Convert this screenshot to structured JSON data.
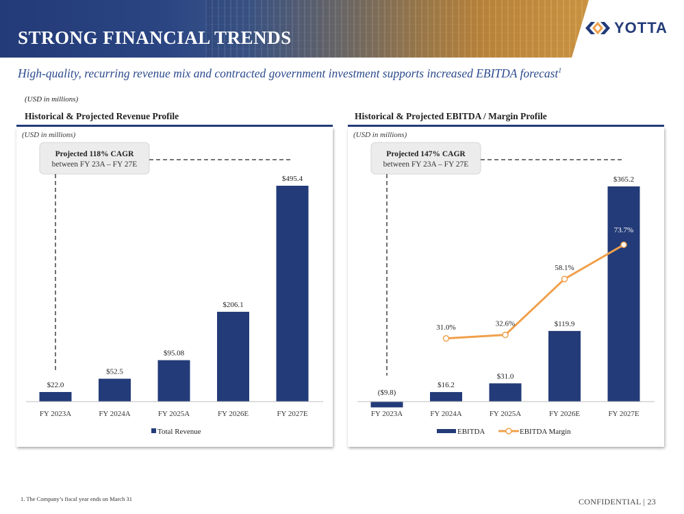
{
  "header": {
    "title": "STRONG FINANCIAL TRENDS",
    "logo_text": "YOTTA",
    "subtitle": "High-quality, recurring revenue mix and contracted government investment supports increased EBITDA forecast",
    "subtitle_sup": "1",
    "units_note": "(USD in millions)"
  },
  "colors": {
    "navy": "#233b78",
    "orange": "#f0a04b",
    "cagr_box": "#ececec"
  },
  "revenue_panel": {
    "title": "Historical & Projected Revenue Profile"
  },
  "ebitda_panel": {
    "title": "Historical & Projected EBITDA / Margin Profile"
  },
  "chart_data": [
    {
      "type": "bar",
      "title": "Historical & Projected Revenue Profile",
      "units_note": "(USD in millions)",
      "categories": [
        "FY 2023A",
        "FY 2024A",
        "FY 2025A",
        "FY 2026E",
        "FY 2027E"
      ],
      "series": [
        {
          "name": "Total Revenue",
          "values": [
            22.0,
            52.5,
            95.08,
            206.1,
            495.4
          ],
          "labels": [
            "$22.0",
            "$52.5",
            "$95.08",
            "$206.1",
            "$495.4"
          ]
        }
      ],
      "ylim": [
        0,
        520
      ],
      "legend": "bottom",
      "annotation": {
        "line1": "Projected 118% CAGR",
        "line2": "between FY 23A – FY 27E"
      }
    },
    {
      "type": "bar",
      "title": "Historical & Projected EBITDA / Margin Profile",
      "units_note": "(USD in millions)",
      "categories": [
        "FY 2023A",
        "FY 2024A",
        "FY 2025A",
        "FY 2026E",
        "FY 2027E"
      ],
      "series": [
        {
          "name": "EBITDA",
          "type": "bar",
          "values": [
            -9.8,
            16.2,
            31.0,
            119.9,
            365.2
          ],
          "labels": [
            "($9.8)",
            "$16.2",
            "$31.0",
            "$119.9",
            "$365.2"
          ]
        },
        {
          "name": "EBITDA Margin",
          "type": "line",
          "values": [
            null,
            31.0,
            32.6,
            58.1,
            73.7
          ],
          "labels": [
            "",
            "31.0%",
            "32.6%",
            "58.1%",
            "73.7%"
          ]
        }
      ],
      "ylim": [
        -15,
        385
      ],
      "y2lim": [
        0,
        100
      ],
      "legend": "bottom",
      "annotation": {
        "line1": "Projected 147% CAGR",
        "line2": "between FY 23A – FY 27E"
      }
    }
  ],
  "footer": {
    "footnote": "1.   The Company’s fiscal year ends on March 31",
    "confidential": "CONFIDENTIAL | 23"
  }
}
